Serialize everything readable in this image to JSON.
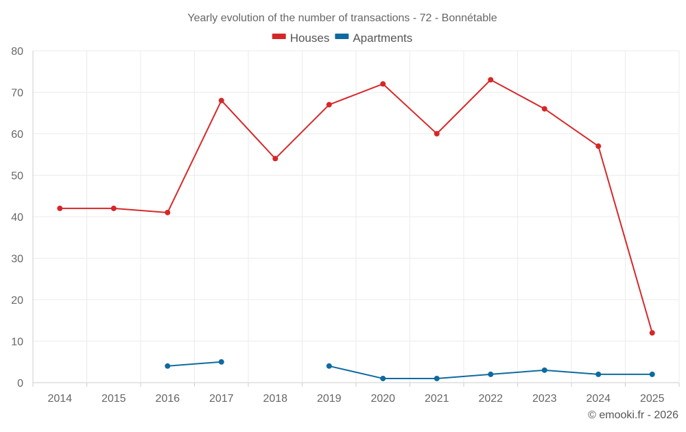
{
  "chart_data": {
    "type": "line",
    "title": "Yearly evolution of the number of transactions - 72 - Bonnétable",
    "categories": [
      "2014",
      "2015",
      "2016",
      "2017",
      "2018",
      "2019",
      "2020",
      "2021",
      "2022",
      "2023",
      "2024",
      "2025"
    ],
    "ylim": [
      0,
      80
    ],
    "yticks": [
      0,
      10,
      20,
      30,
      40,
      50,
      60,
      70,
      80
    ],
    "grid": true,
    "legend_position": "top-center",
    "series": [
      {
        "name": "Houses",
        "color": "#d62728",
        "values": [
          42,
          42,
          41,
          68,
          54,
          67,
          72,
          60,
          73,
          66,
          57,
          12
        ]
      },
      {
        "name": "Apartments",
        "color": "#0e6aa0",
        "values": [
          null,
          null,
          4,
          5,
          null,
          4,
          1,
          1,
          2,
          3,
          2,
          2
        ]
      }
    ],
    "credit": "© emooki.fr - 2026"
  }
}
